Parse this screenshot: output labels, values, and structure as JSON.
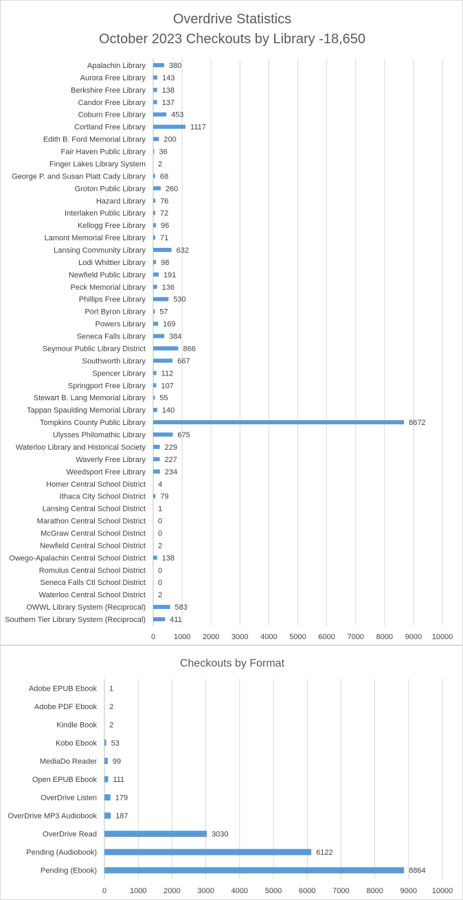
{
  "chart_data": [
    {
      "type": "bar",
      "orientation": "horizontal",
      "title": "Overdrive Statistics",
      "subtitle": "October 2023 Checkouts by Library -18,650",
      "categories": [
        "Apalachin Library",
        "Aurora Free Library",
        "Berkshire Free Library",
        "Candor Free Library",
        "Coburn Free Library",
        "Cortland Free Library",
        "Edith B. Ford Memorial Library",
        "Fair Haven Public Library",
        "Finger Lakes Library System",
        "George P. and Susan Platt Cady Library",
        "Groton Public Library",
        "Hazard Library",
        "Interlaken Public Library",
        "Kellogg Free Library",
        "Lamont Memorial Free Library",
        "Lansing Community Library",
        "Lodi Whittier Library",
        "Newfield Public Library",
        "Peck Memorial Library",
        "Phillips Free Library",
        "Port Byron Library",
        "Powers Library",
        "Seneca Falls Library",
        "Seymour Public Library District",
        "Southworth Library",
        "Spencer Library",
        "Springport Free Library",
        "Stewart B. Lang Memorial Library",
        "Tappan Spaulding Memorial Library",
        "Tompkins County Public Library",
        "Ulysses Philomathic Library",
        "Waterloo Library and Historical Society",
        "Waverly Free Library",
        "Weedsport Free Library",
        "Homer Central School District",
        "Ithaca City School District",
        "Lansing Central School District",
        "Marathon Central School District",
        "McGraw Central School District",
        "Newfield Central School District",
        "Owego-Apalachin Central School District",
        "Romulus Central School District",
        "Seneca Falls Ctl School District",
        "Waterloo Central School District",
        "OWWL Library System (Reciprocal)",
        "Southern Tier Library System (Reciprocal)"
      ],
      "values": [
        380,
        143,
        138,
        137,
        453,
        1117,
        200,
        36,
        2,
        68,
        260,
        76,
        72,
        96,
        71,
        632,
        98,
        191,
        136,
        530,
        57,
        169,
        384,
        866,
        667,
        112,
        107,
        55,
        140,
        8672,
        675,
        229,
        227,
        234,
        4,
        79,
        1,
        0,
        0,
        2,
        138,
        0,
        0,
        2,
        583,
        411
      ],
      "xlim": [
        0,
        10000
      ],
      "xticks": [
        0,
        1000,
        2000,
        3000,
        4000,
        5000,
        6000,
        7000,
        8000,
        9000,
        10000
      ],
      "grid": true,
      "color": "#5b9bd5"
    },
    {
      "type": "bar",
      "orientation": "horizontal",
      "title": "Checkouts by Format",
      "categories": [
        "Adobe EPUB Ebook",
        "Adobe PDF Ebook",
        "Kindle Book",
        "Kobo Ebook",
        "MediaDo Reader",
        "Open EPUB Ebook",
        "OverDrive Listen",
        "OverDrive MP3 Audiobook",
        "OverDrive Read",
        "Pending (Audiobook)",
        "Pending (Ebook)"
      ],
      "values": [
        1,
        2,
        2,
        53,
        99,
        111,
        179,
        187,
        3030,
        6122,
        8864
      ],
      "xlim": [
        0,
        10000
      ],
      "xticks": [
        0,
        1000,
        2000,
        3000,
        4000,
        5000,
        6000,
        7000,
        8000,
        9000,
        10000
      ],
      "grid": true,
      "color": "#5b9bd5"
    }
  ]
}
